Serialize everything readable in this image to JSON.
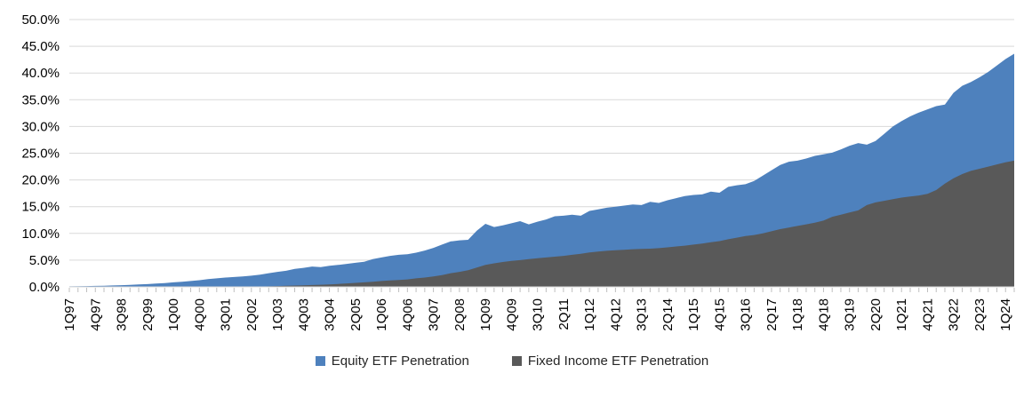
{
  "chart_data": {
    "type": "area",
    "title": "",
    "xlabel": "",
    "ylabel": "",
    "grid": true,
    "legend_position": "bottom",
    "background_color": "#ffffff",
    "gridline_color": "#d9d9d9",
    "tick_color": "#bfbfbf",
    "axis_text_color": "#000000",
    "x_label_every": 3,
    "y_axis": {
      "min": 0,
      "max": 50,
      "step": 5,
      "tick_labels": [
        "0.0%",
        "5.0%",
        "10.0%",
        "15.0%",
        "20.0%",
        "25.0%",
        "30.0%",
        "35.0%",
        "40.0%",
        "45.0%",
        "50.0%"
      ]
    },
    "categories": [
      "1Q97",
      "2Q97",
      "3Q97",
      "4Q97",
      "1Q98",
      "2Q98",
      "3Q98",
      "4Q98",
      "1Q99",
      "2Q99",
      "3Q99",
      "4Q99",
      "1Q00",
      "2Q00",
      "3Q00",
      "4Q00",
      "1Q01",
      "2Q01",
      "3Q01",
      "4Q01",
      "1Q02",
      "2Q02",
      "3Q02",
      "4Q02",
      "1Q03",
      "2Q03",
      "3Q03",
      "4Q03",
      "1Q04",
      "2Q04",
      "3Q04",
      "4Q04",
      "1Q05",
      "2Q05",
      "3Q05",
      "4Q05",
      "1Q06",
      "2Q06",
      "3Q06",
      "4Q06",
      "1Q07",
      "2Q07",
      "3Q07",
      "4Q07",
      "1Q08",
      "2Q08",
      "3Q08",
      "4Q08",
      "1Q09",
      "2Q09",
      "3Q09",
      "4Q09",
      "1Q10",
      "2Q10",
      "3Q10",
      "4Q10",
      "1Q11",
      "2Q11",
      "3Q11",
      "4Q11",
      "1Q12",
      "2Q12",
      "3Q12",
      "4Q12",
      "1Q13",
      "2Q13",
      "3Q13",
      "4Q13",
      "1Q14",
      "2Q14",
      "3Q14",
      "4Q14",
      "1Q15",
      "2Q15",
      "3Q15",
      "4Q15",
      "1Q16",
      "2Q16",
      "3Q16",
      "4Q16",
      "1Q17",
      "2Q17",
      "3Q17",
      "4Q17",
      "1Q18",
      "2Q18",
      "3Q18",
      "4Q18",
      "1Q19",
      "2Q19",
      "3Q19",
      "4Q19",
      "1Q20",
      "2Q20",
      "3Q20",
      "4Q20",
      "1Q21",
      "2Q21",
      "3Q21",
      "4Q21",
      "1Q22",
      "2Q22",
      "3Q22",
      "4Q22",
      "1Q23",
      "2Q23",
      "3Q23",
      "4Q23",
      "1Q24",
      "2Q24"
    ],
    "series": [
      {
        "name": "Equity ETF Penetration",
        "color": "#4e81bd",
        "values": [
          0.1,
          0.13,
          0.15,
          0.18,
          0.22,
          0.26,
          0.32,
          0.38,
          0.45,
          0.52,
          0.62,
          0.72,
          0.85,
          0.95,
          1.1,
          1.25,
          1.45,
          1.6,
          1.75,
          1.85,
          1.95,
          2.1,
          2.3,
          2.55,
          2.8,
          3.0,
          3.35,
          3.55,
          3.8,
          3.7,
          3.95,
          4.1,
          4.3,
          4.5,
          4.7,
          5.2,
          5.5,
          5.8,
          6.0,
          6.1,
          6.4,
          6.8,
          7.3,
          7.9,
          8.5,
          8.7,
          8.8,
          10.5,
          11.8,
          11.2,
          11.5,
          11.9,
          12.3,
          11.7,
          12.2,
          12.6,
          13.2,
          13.3,
          13.5,
          13.3,
          14.2,
          14.5,
          14.8,
          15.0,
          15.2,
          15.4,
          15.3,
          15.9,
          15.7,
          16.2,
          16.6,
          17.0,
          17.2,
          17.3,
          17.8,
          17.6,
          18.7,
          19.0,
          19.2,
          19.8,
          20.8,
          21.8,
          22.8,
          23.4,
          23.6,
          24.0,
          24.5,
          24.8,
          25.1,
          25.7,
          26.4,
          26.9,
          26.6,
          27.3,
          28.6,
          30.0,
          31.0,
          31.9,
          32.6,
          33.2,
          33.8,
          34.1,
          36.3,
          37.6,
          38.3,
          39.2,
          40.2,
          41.4,
          42.6,
          43.6
        ]
      },
      {
        "name": "Fixed Income ETF Penetration",
        "color": "#595959",
        "values": [
          0.0,
          0.0,
          0.0,
          0.0,
          0.0,
          0.0,
          0.0,
          0.0,
          0.0,
          0.0,
          0.0,
          0.0,
          0.0,
          0.0,
          0.0,
          0.0,
          0.0,
          0.0,
          0.0,
          0.0,
          0.0,
          0.0,
          0.05,
          0.1,
          0.15,
          0.2,
          0.25,
          0.3,
          0.35,
          0.4,
          0.45,
          0.55,
          0.65,
          0.75,
          0.85,
          0.95,
          1.1,
          1.2,
          1.3,
          1.4,
          1.6,
          1.75,
          1.95,
          2.2,
          2.55,
          2.8,
          3.1,
          3.6,
          4.1,
          4.4,
          4.65,
          4.85,
          5.0,
          5.2,
          5.35,
          5.5,
          5.65,
          5.8,
          6.0,
          6.2,
          6.45,
          6.6,
          6.75,
          6.85,
          6.95,
          7.05,
          7.1,
          7.15,
          7.25,
          7.4,
          7.55,
          7.7,
          7.9,
          8.1,
          8.35,
          8.55,
          8.9,
          9.2,
          9.5,
          9.7,
          10.0,
          10.4,
          10.8,
          11.1,
          11.4,
          11.7,
          12.0,
          12.4,
          13.1,
          13.5,
          13.9,
          14.3,
          15.3,
          15.8,
          16.1,
          16.4,
          16.7,
          16.9,
          17.1,
          17.4,
          18.1,
          19.3,
          20.3,
          21.1,
          21.7,
          22.1,
          22.5,
          22.9,
          23.3,
          23.6
        ]
      }
    ]
  }
}
